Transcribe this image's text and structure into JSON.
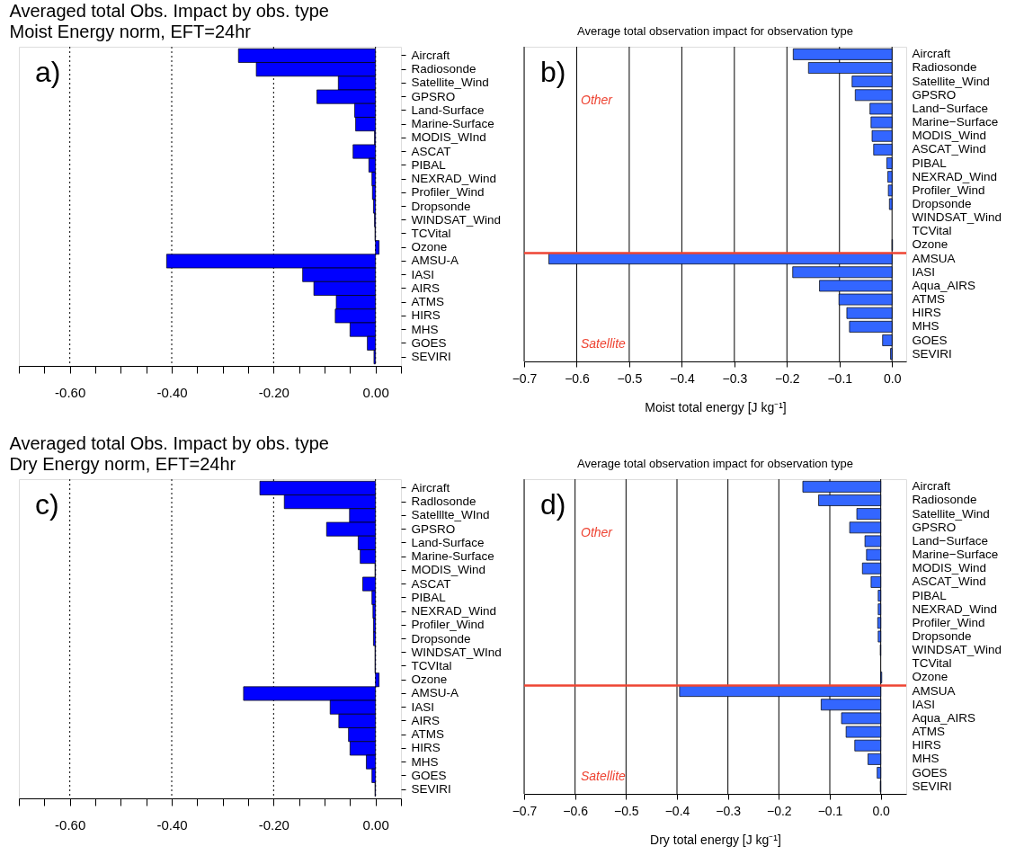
{
  "chart_data": [
    {
      "type": "bar",
      "orientation": "horizontal",
      "title": "Averaged total Obs. Impact by obs. type",
      "subtitle": "Moist Energy norm, EFT=24hr",
      "annotations": [
        "a)"
      ],
      "categories": [
        "Aircraft",
        "Radiosonde",
        "Satellite_Wind",
        "GPSRO",
        "Land-Surface",
        "Marine-Surface",
        "MODIS_WInd",
        "ASCAT",
        "PIBAL",
        "NEXRAD_Wind",
        "Profiler_Wind",
        "Dropsonde",
        "WINDSAT_Wind",
        "TCVital",
        "Ozone",
        "AMSU-A",
        "IASI",
        "AIRS",
        "ATMS",
        "HIRS",
        "MHS",
        "GOES",
        "SEVIRI"
      ],
      "values": [
        -0.269,
        -0.234,
        -0.073,
        -0.115,
        -0.041,
        -0.039,
        -0.002,
        -0.044,
        -0.013,
        -0.007,
        -0.006,
        -0.004,
        -0.002,
        -0.001,
        0.007,
        -0.41,
        -0.143,
        -0.121,
        -0.077,
        -0.079,
        -0.05,
        -0.016,
        -0.003
      ],
      "color": "#0000ff",
      "xlim": [
        -0.7,
        0.05
      ],
      "xticks": [
        {
          "value": -0.7,
          "label": null
        },
        {
          "value": -0.65,
          "label": null
        },
        {
          "value": -0.6,
          "label": "-0.60"
        },
        {
          "value": -0.55,
          "label": null
        },
        {
          "value": -0.5,
          "label": null
        },
        {
          "value": -0.45,
          "label": null
        },
        {
          "value": -0.4,
          "label": "-0.40"
        },
        {
          "value": -0.35,
          "label": null
        },
        {
          "value": -0.3,
          "label": null
        },
        {
          "value": -0.25,
          "label": null
        },
        {
          "value": -0.2,
          "label": "-0.20"
        },
        {
          "value": -0.15,
          "label": null
        },
        {
          "value": -0.1,
          "label": null
        },
        {
          "value": -0.05,
          "label": null
        },
        {
          "value": 0,
          "label": "0.00"
        },
        {
          "value": 0.05,
          "label": null
        }
      ],
      "grid": "x",
      "line_style": "dotted"
    },
    {
      "type": "bar",
      "orientation": "horizontal",
      "title": "Average total observation impact for observation type",
      "xlabel": "Moist total energy [J kg⁻¹]",
      "annotations": [
        "b)",
        "Other",
        "Satellite"
      ],
      "categories": [
        "Aircraft",
        "Radiosonde",
        "Satellite_Wind",
        "GPSRO",
        "Land−Surface",
        "Marine−Surface",
        "MODIS_Wind",
        "ASCAT_Wind",
        "PIBAL",
        "NEXRAD_Wind",
        "Profiler_Wind",
        "Dropsonde",
        "WINDSAT_Wind",
        "TCVital",
        "Ozone",
        "AMSUA",
        "IASI",
        "Aqua_AIRS",
        "ATMS",
        "HIRS",
        "MHS",
        "GOES",
        "SEVIRI"
      ],
      "values": [
        -0.188,
        -0.159,
        -0.076,
        -0.07,
        -0.042,
        -0.04,
        -0.038,
        -0.035,
        -0.01,
        -0.008,
        -0.007,
        -0.005,
        null,
        null,
        0.001,
        -0.653,
        -0.189,
        -0.138,
        -0.101,
        -0.086,
        -0.081,
        -0.018,
        -0.003
      ],
      "color": "#3366ff",
      "xlim": [
        -0.7,
        0.027
      ],
      "xticks": [
        {
          "value": -0.7,
          "label": "−0.7"
        },
        {
          "value": -0.6,
          "label": "−0.6"
        },
        {
          "value": -0.5,
          "label": "−0.5"
        },
        {
          "value": -0.4,
          "label": "−0.4"
        },
        {
          "value": -0.3,
          "label": "−0.3"
        },
        {
          "value": -0.2,
          "label": "−0.2"
        },
        {
          "value": -0.1,
          "label": "−0.1"
        },
        {
          "value": 0,
          "label": "0.0"
        }
      ],
      "grid": "x",
      "ref_lines": [
        {
          "axis": "y",
          "value": "AMSUA",
          "color": "#ee4433"
        }
      ]
    },
    {
      "type": "bar",
      "orientation": "horizontal",
      "title": "Averaged total Obs. Impact by obs. type",
      "subtitle": "Dry Energy norm, EFT=24hr",
      "annotations": [
        "c)"
      ],
      "categories": [
        "Aircraft",
        "Radlosonde",
        "Satelllte_WInd",
        "GPSRO",
        "Land-Surface",
        "Marine-Surface",
        "MODIS_Wind",
        "ASCAT",
        "PIBAL",
        "NEXRAD_Wind",
        "Profiler_Wind",
        "Dropsonde",
        "WINDSAT_WInd",
        "TCVItal",
        "Ozone",
        "AMSU-A",
        "IASI",
        "AIRS",
        "ATMS",
        "HIRS",
        "MHS",
        "GOES",
        "SEVIRI"
      ],
      "values": [
        -0.227,
        -0.179,
        -0.051,
        -0.096,
        -0.034,
        -0.03,
        -0.001,
        -0.025,
        -0.007,
        -0.005,
        -0.004,
        -0.004,
        -0.001,
        -0.001,
        0.007,
        -0.259,
        -0.089,
        -0.072,
        -0.053,
        -0.05,
        -0.018,
        -0.007,
        -0.001
      ],
      "color": "#0000ff",
      "xlim": [
        -0.7,
        0.05
      ],
      "xticks": [
        {
          "value": -0.7,
          "label": null
        },
        {
          "value": -0.65,
          "label": null
        },
        {
          "value": -0.6,
          "label": "-0.60"
        },
        {
          "value": -0.55,
          "label": null
        },
        {
          "value": -0.5,
          "label": null
        },
        {
          "value": -0.45,
          "label": null
        },
        {
          "value": -0.4,
          "label": "-0.40"
        },
        {
          "value": -0.35,
          "label": null
        },
        {
          "value": -0.3,
          "label": null
        },
        {
          "value": -0.25,
          "label": null
        },
        {
          "value": -0.2,
          "label": "-0.20"
        },
        {
          "value": -0.15,
          "label": null
        },
        {
          "value": -0.1,
          "label": null
        },
        {
          "value": -0.05,
          "label": null
        },
        {
          "value": 0,
          "label": "0.00"
        },
        {
          "value": 0.05,
          "label": null
        }
      ],
      "grid": "x",
      "line_style": "dotted"
    },
    {
      "type": "bar",
      "orientation": "horizontal",
      "title": "Average total observation impact for observation type",
      "xlabel": "Dry total energy [J kg⁻¹]",
      "annotations": [
        "d)",
        "Other",
        "Satellite"
      ],
      "categories": [
        "Aircraft",
        "Radiosonde",
        "Satellite_Wind",
        "GPSRO",
        "Land−Surface",
        "Marine−Surface",
        "MODIS_Wind",
        "ASCAT_Wind",
        "PIBAL",
        "NEXRAD_Wind",
        "Profiler_Wind",
        "Dropsonde",
        "WINDSAT_Wind",
        "TCVital",
        "Ozone",
        "AMSUA",
        "IASI",
        "Aqua_AIRS",
        "ATMS",
        "HIRS",
        "MHS",
        "GOES",
        "SEVIRI"
      ],
      "values": [
        -0.153,
        -0.122,
        -0.047,
        -0.061,
        -0.031,
        -0.028,
        -0.036,
        -0.019,
        -0.005,
        -0.005,
        -0.006,
        -0.005,
        -0.001,
        null,
        0.002,
        -0.395,
        -0.117,
        -0.077,
        -0.068,
        -0.051,
        -0.025,
        -0.007,
        -0.001
      ],
      "color": "#3366ff",
      "xlim": [
        -0.7,
        0.05
      ],
      "xticks": [
        {
          "value": -0.7,
          "label": "−0.7"
        },
        {
          "value": -0.6,
          "label": "−0.6"
        },
        {
          "value": -0.5,
          "label": "−0.5"
        },
        {
          "value": -0.4,
          "label": "−0.4"
        },
        {
          "value": -0.3,
          "label": "−0.3"
        },
        {
          "value": -0.2,
          "label": "−0.2"
        },
        {
          "value": -0.1,
          "label": "−0.1"
        },
        {
          "value": 0,
          "label": "0.0"
        }
      ],
      "grid": "x",
      "ref_lines": [
        {
          "axis": "y",
          "value": "AMSUA",
          "color": "#ee4433"
        }
      ]
    }
  ]
}
